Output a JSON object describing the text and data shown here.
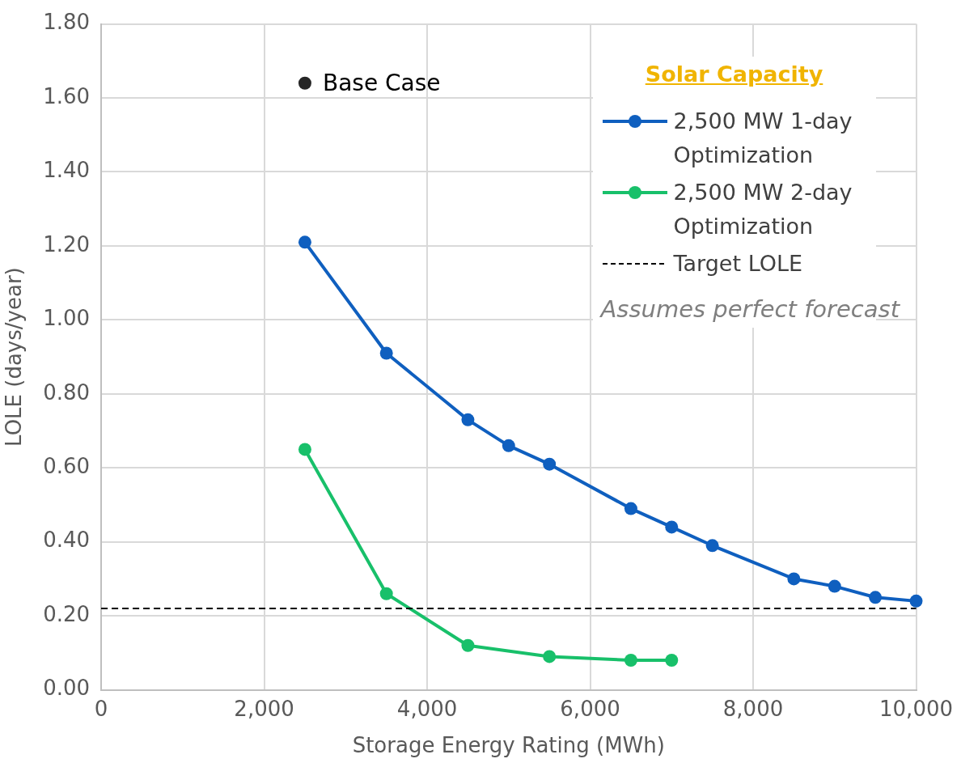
{
  "chart_data": {
    "type": "line",
    "xlabel": "Storage Energy Rating (MWh)",
    "ylabel": "LOLE (days/year)",
    "legend_title": "Solar Capacity",
    "series": [
      {
        "name": "2,500 MW 1-day Optimization",
        "color": "#0f5fbf",
        "x": [
          2500,
          3500,
          4500,
          5000,
          5500,
          6500,
          7000,
          7500,
          8500,
          9000,
          9500,
          10000
        ],
        "values": [
          1.21,
          0.91,
          0.73,
          0.66,
          0.61,
          0.49,
          0.44,
          0.39,
          0.3,
          0.28,
          0.25,
          0.24
        ]
      },
      {
        "name": "2,500 MW 2-day Optimization",
        "color": "#18c06a",
        "x": [
          2500,
          3500,
          4500,
          5500,
          6500,
          7000
        ],
        "values": [
          0.65,
          0.26,
          0.12,
          0.09,
          0.08,
          0.08
        ]
      },
      {
        "name": "Base Case",
        "type": "scatter",
        "color": "#262626",
        "x": [
          2500
        ],
        "values": [
          1.64
        ]
      }
    ],
    "ref_lines": [
      {
        "axis": "y",
        "value": 0.22,
        "label": "Target LOLE",
        "color": "#000000",
        "line_style": "dashed"
      }
    ],
    "annotations": [
      "Assumes perfect forecast"
    ],
    "xlim": [
      0,
      10000
    ],
    "ylim": [
      0,
      1.8
    ],
    "xticks": [
      0,
      {
        "value": 2000,
        "label": "2,000"
      },
      {
        "value": 4000,
        "label": "4,000"
      },
      {
        "value": 6000,
        "label": "6,000"
      },
      {
        "value": 8000,
        "label": "8,000"
      },
      {
        "value": 10000,
        "label": "10,000"
      }
    ],
    "yticks": [
      {
        "value": 0,
        "label": "0.00"
      },
      {
        "value": 0.2,
        "label": "0.20"
      },
      {
        "value": 0.4,
        "label": "0.40"
      },
      {
        "value": 0.6,
        "label": "0.60"
      },
      {
        "value": 0.8,
        "label": "0.80"
      },
      {
        "value": 1,
        "label": "1.00"
      },
      {
        "value": 1.2,
        "label": "1.20"
      },
      {
        "value": 1.4,
        "label": "1.40"
      },
      {
        "value": 1.6,
        "label": "1.60"
      },
      {
        "value": 1.8,
        "label": "1.80"
      }
    ],
    "grid": true,
    "legend": "top right",
    "marker": "circle",
    "line_style": "solid"
  }
}
